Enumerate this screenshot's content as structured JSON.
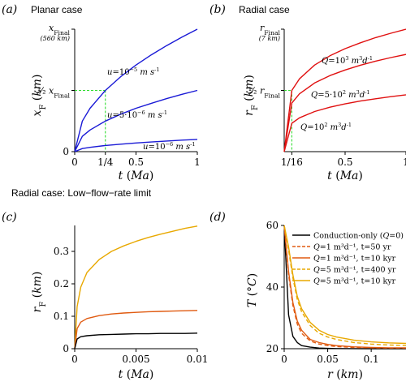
{
  "chart_data": [
    {
      "type": "line",
      "panel_label": "(a)",
      "title": "Planar case",
      "xlabel": "t (Ma)",
      "ylabel": "x_F (km)",
      "xlim": [
        0,
        1
      ],
      "ylim": [
        0,
        1
      ],
      "x_ticks": [
        "0",
        "1/4",
        "0.5",
        "1"
      ],
      "y_ticks": [
        "0",
        "½ x_Final",
        "x_Final (560 km)"
      ],
      "top_tick_label": "x_Final",
      "top_tick_note": "(560 km)",
      "half_tick_label": "½ x_Final",
      "x": [
        0,
        0.0625,
        0.125,
        0.25,
        0.375,
        0.5,
        0.625,
        0.75,
        0.875,
        1
      ],
      "series": [
        {
          "name": "u=10⁻⁵ m s⁻¹",
          "color": "#1a1ad6",
          "values": [
            0,
            0.25,
            0.354,
            0.5,
            0.612,
            0.707,
            0.791,
            0.866,
            0.935,
            1.0
          ]
        },
        {
          "name": "u=5·10⁻⁶ m s⁻¹",
          "color": "#1a1ad6",
          "values": [
            0,
            0.125,
            0.177,
            0.25,
            0.306,
            0.354,
            0.395,
            0.433,
            0.468,
            0.5
          ]
        },
        {
          "name": "u=10⁻⁶ m s⁻¹",
          "color": "#1a1ad6",
          "values": [
            0,
            0.025,
            0.035,
            0.05,
            0.061,
            0.071,
            0.079,
            0.087,
            0.094,
            0.1
          ]
        }
      ],
      "series_labels": [
        {
          "u": "u",
          "eq": "=10",
          "exp": "−5",
          "unit": "m s",
          "unitexp": "-1"
        },
        {
          "u": "u",
          "eq": "=5·10",
          "exp": "−6",
          "unit": "m s",
          "unitexp": "-1"
        },
        {
          "u": "u",
          "eq": "=10",
          "exp": "−6",
          "unit": "m s",
          "unitexp": "-1"
        }
      ],
      "guide": {
        "x": 0.25,
        "y": 0.5,
        "color": "#33dd33",
        "style": "dashed"
      }
    },
    {
      "type": "line",
      "panel_label": "(b)",
      "title": "Radial case",
      "xlabel": "t (Ma)",
      "ylabel": "r_F (km)",
      "xlim": [
        0,
        1
      ],
      "ylim": [
        0,
        1
      ],
      "x_ticks": [
        "1/16",
        "0.5",
        "1"
      ],
      "y_ticks": [
        "½ r_Final",
        "r_Final (7 km)"
      ],
      "top_tick_label": "r_Final",
      "top_tick_note": "(7 km)",
      "half_tick_label": "½ r_Final",
      "x": [
        0,
        0.0625,
        0.125,
        0.25,
        0.375,
        0.5,
        0.625,
        0.75,
        0.875,
        1
      ],
      "series": [
        {
          "name": "Q=10³ m³d⁻¹",
          "color": "#e01010",
          "values": [
            0,
            0.5,
            0.595,
            0.707,
            0.783,
            0.841,
            0.889,
            0.931,
            0.967,
            1.0
          ]
        },
        {
          "name": "Q=5·10² m³d⁻¹",
          "color": "#e01010",
          "values": [
            0,
            0.397,
            0.472,
            0.561,
            0.621,
            0.667,
            0.706,
            0.739,
            0.768,
            0.794
          ]
        },
        {
          "name": "Q=10² m³d⁻¹",
          "color": "#e01010",
          "values": [
            0,
            0.232,
            0.276,
            0.328,
            0.363,
            0.39,
            0.413,
            0.432,
            0.449,
            0.464
          ]
        }
      ],
      "series_labels": [
        {
          "u": "Q",
          "eq": "=10",
          "exp": "3",
          "unit": "m",
          "unitexp": "3",
          "tail": "d",
          "tailexp": "-1"
        },
        {
          "u": "Q",
          "eq": "=5·10",
          "exp": "2",
          "unit": "m",
          "unitexp": "3",
          "tail": "d",
          "tailexp": "-1"
        },
        {
          "u": "Q",
          "eq": "=10",
          "exp": "2",
          "unit": "m",
          "unitexp": "3",
          "tail": "d",
          "tailexp": "-1"
        }
      ],
      "guide": {
        "x": 0.0625,
        "y": 0.5,
        "color": "#33dd33",
        "style": "dashed"
      }
    },
    {
      "type": "line",
      "panel_label": "(c)",
      "heading": "Radial case: Low−flow−rate limit",
      "xlabel": "t (Ma)",
      "ylabel": "r_F (km)",
      "xlim": [
        0,
        0.01
      ],
      "ylim": [
        0,
        0.38
      ],
      "x_ticks": [
        "0",
        "0.005",
        "0.01"
      ],
      "y_ticks": [
        "0",
        "0.1",
        "0.2",
        "0.3"
      ],
      "x": [
        0,
        0.0002,
        0.0005,
        0.001,
        0.002,
        0.003,
        0.004,
        0.005,
        0.006,
        0.007,
        0.008,
        0.009,
        0.01
      ],
      "series": [
        {
          "color": "#e8a800",
          "values": [
            0,
            0.13,
            0.19,
            0.235,
            0.275,
            0.3,
            0.317,
            0.331,
            0.343,
            0.353,
            0.362,
            0.371,
            0.378
          ]
        },
        {
          "color": "#e05a10",
          "values": [
            0,
            0.062,
            0.082,
            0.093,
            0.102,
            0.107,
            0.11,
            0.112,
            0.114,
            0.115,
            0.116,
            0.117,
            0.118
          ]
        },
        {
          "color": "#000000",
          "values": [
            0,
            0.03,
            0.037,
            0.04,
            0.043,
            0.044,
            0.045,
            0.046,
            0.046,
            0.047,
            0.047,
            0.047,
            0.048
          ]
        }
      ]
    },
    {
      "type": "line",
      "panel_label": "(d)",
      "xlabel": "r (km)",
      "ylabel": "T (°C)",
      "xlim": [
        0,
        0.14
      ],
      "ylim": [
        20,
        60
      ],
      "x_ticks": [
        "0",
        "0.05",
        "0.1"
      ],
      "y_ticks": [
        "20",
        "40",
        "60"
      ],
      "x": [
        0,
        0.005,
        0.01,
        0.015,
        0.02,
        0.03,
        0.04,
        0.05,
        0.06,
        0.08,
        0.1,
        0.12,
        0.14
      ],
      "series": [
        {
          "name": "Conduction-only (Q=0)",
          "color": "#000000",
          "dash": "solid",
          "values": [
            60,
            31,
            24,
            22,
            21,
            20.5,
            20.2,
            20.1,
            20.05,
            20.02,
            20.01,
            20,
            20
          ]
        },
        {
          "name": "Q=1 m³d⁻¹, t=50 yr",
          "color": "#e05a10",
          "dash": "dashed",
          "values": [
            60,
            44,
            34,
            28,
            25,
            22.5,
            21.5,
            21,
            20.7,
            20.4,
            20.3,
            20.2,
            20.2
          ]
        },
        {
          "name": "Q=1 m³d⁻¹, t=10 kyr",
          "color": "#e05a10",
          "dash": "solid",
          "values": [
            60,
            45,
            35,
            29,
            26,
            23,
            22,
            21.4,
            21,
            20.6,
            20.4,
            20.3,
            20.3
          ]
        },
        {
          "name": "Q=5 m³d⁻¹, t=400 yr",
          "color": "#e8a800",
          "dash": "dashed",
          "values": [
            60,
            52,
            43,
            36,
            32,
            27.5,
            25,
            23.8,
            23,
            22,
            21.5,
            21.2,
            21
          ]
        },
        {
          "name": "Q=5 m³d⁻¹, t=10 kyr",
          "color": "#e8a800",
          "dash": "solid",
          "values": [
            60,
            53,
            44,
            37,
            33,
            28.5,
            26,
            24.6,
            23.8,
            22.8,
            22.2,
            21.9,
            21.7
          ]
        }
      ],
      "legend": [
        {
          "pre": "Conduction-only (",
          "q": "Q",
          "post": "=0)"
        },
        {
          "pre": "",
          "q": "Q",
          "post": "=1 m³d⁻¹, t=50 yr"
        },
        {
          "pre": "",
          "q": "Q",
          "post": "=1 m³d⁻¹, t=10 kyr"
        },
        {
          "pre": "",
          "q": "Q",
          "post": "=5 m³d⁻¹, t=400 yr"
        },
        {
          "pre": "",
          "q": "Q",
          "post": "=5 m³d⁻¹, t=10 kyr"
        }
      ],
      "legend_position": "top-right"
    }
  ]
}
